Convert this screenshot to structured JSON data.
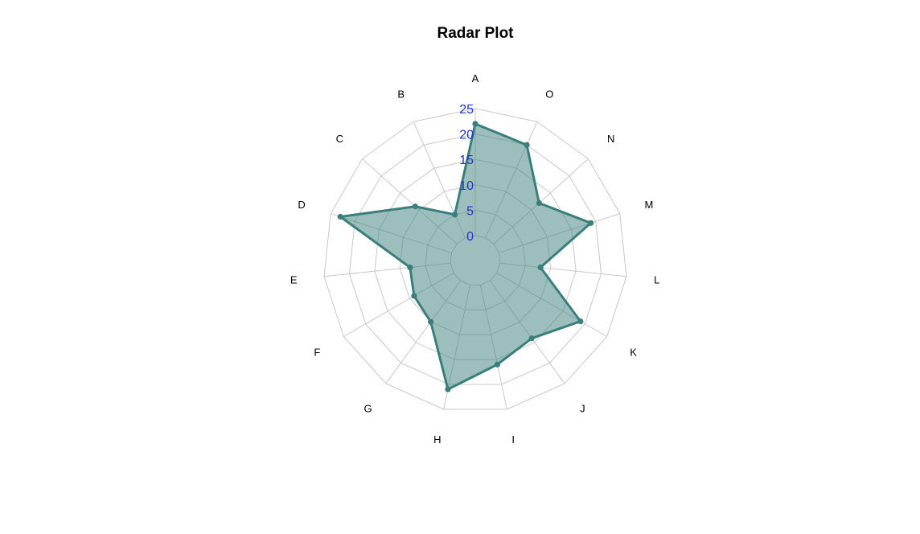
{
  "chart_data": {
    "type": "radar",
    "title": "Radar Plot",
    "categories": [
      "A",
      "O",
      "N",
      "M",
      "L",
      "K",
      "J",
      "I",
      "H",
      "G",
      "F",
      "E",
      "D",
      "C",
      "B"
    ],
    "series": [
      {
        "values": [
          22,
          20,
          12,
          19,
          8,
          19,
          14,
          16,
          21,
          10,
          9,
          8,
          23,
          11,
          5
        ]
      }
    ],
    "rlim": [
      0,
      25
    ],
    "ticks": [
      "0",
      "5",
      "10",
      "15",
      "20",
      "25"
    ],
    "grid": true,
    "colors": {
      "series_line": "#3a7f7b",
      "series_fill": "#3a7f7b",
      "grid": "#c8c8c8",
      "tick_labels": "#2233cc"
    }
  }
}
